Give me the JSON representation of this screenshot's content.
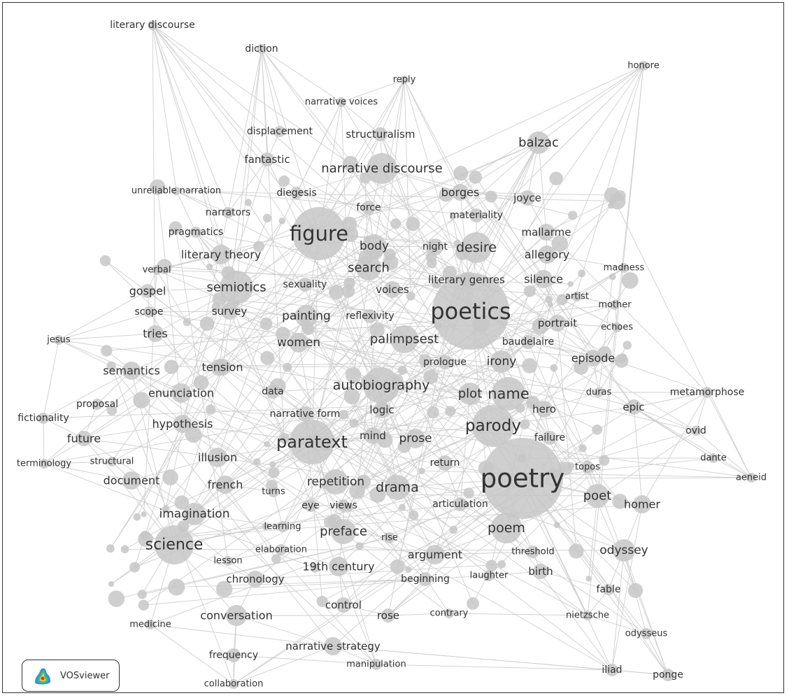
{
  "branding": {
    "name": "VOSviewer",
    "icon": "vosviewer-density-icon"
  },
  "colors": {
    "node": "#c7c7c7",
    "edge": "#cfcfcf",
    "label": "#333333",
    "frame": "#333333"
  },
  "terms": [
    {
      "id": "literary-discourse",
      "label": "literary discourse"
    },
    {
      "id": "diction",
      "label": "diction"
    },
    {
      "id": "reply",
      "label": "reply"
    },
    {
      "id": "honore",
      "label": "honore"
    },
    {
      "id": "narrative-voices",
      "label": "narrative voices"
    },
    {
      "id": "displacement",
      "label": "displacement"
    },
    {
      "id": "structuralism",
      "label": "structuralism"
    },
    {
      "id": "balzac",
      "label": "balzac"
    },
    {
      "id": "fantastic",
      "label": "fantastic"
    },
    {
      "id": "narrative-discourse",
      "label": "narrative discourse"
    },
    {
      "id": "unreliable-narration",
      "label": "unreliable narration"
    },
    {
      "id": "diegesis",
      "label": "diegesis"
    },
    {
      "id": "borges",
      "label": "borges"
    },
    {
      "id": "joyce",
      "label": "joyce"
    },
    {
      "id": "narrators",
      "label": "narrators"
    },
    {
      "id": "force",
      "label": "force"
    },
    {
      "id": "materiality",
      "label": "materiality"
    },
    {
      "id": "figure",
      "label": "figure"
    },
    {
      "id": "pragmatics",
      "label": "pragmatics"
    },
    {
      "id": "mallarme",
      "label": "mallarme"
    },
    {
      "id": "body",
      "label": "body"
    },
    {
      "id": "night",
      "label": "night"
    },
    {
      "id": "desire",
      "label": "desire"
    },
    {
      "id": "literary-theory",
      "label": "literary theory"
    },
    {
      "id": "allegory",
      "label": "allegory"
    },
    {
      "id": "verbal",
      "label": "verbal"
    },
    {
      "id": "search",
      "label": "search"
    },
    {
      "id": "madness",
      "label": "madness"
    },
    {
      "id": "gospel",
      "label": "gospel"
    },
    {
      "id": "semiotics",
      "label": "semiotics"
    },
    {
      "id": "sexuality",
      "label": "sexuality"
    },
    {
      "id": "literary-genres",
      "label": "literary genres"
    },
    {
      "id": "silence",
      "label": "silence"
    },
    {
      "id": "voices",
      "label": "voices"
    },
    {
      "id": "artist",
      "label": "artist"
    },
    {
      "id": "scope",
      "label": "scope"
    },
    {
      "id": "survey",
      "label": "survey"
    },
    {
      "id": "poetics",
      "label": "poetics"
    },
    {
      "id": "mother",
      "label": "mother"
    },
    {
      "id": "painting",
      "label": "painting"
    },
    {
      "id": "reflexivity",
      "label": "reflexivity"
    },
    {
      "id": "portrait",
      "label": "portrait"
    },
    {
      "id": "echoes",
      "label": "echoes"
    },
    {
      "id": "tries",
      "label": "tries"
    },
    {
      "id": "jesus",
      "label": "jesus"
    },
    {
      "id": "women",
      "label": "women"
    },
    {
      "id": "palimpsest",
      "label": "palimpsest"
    },
    {
      "id": "baudelaire",
      "label": "baudelaire"
    },
    {
      "id": "episode",
      "label": "episode"
    },
    {
      "id": "semantics",
      "label": "semantics"
    },
    {
      "id": "tension",
      "label": "tension"
    },
    {
      "id": "prologue",
      "label": "prologue"
    },
    {
      "id": "irony",
      "label": "irony"
    },
    {
      "id": "autobiography",
      "label": "autobiography"
    },
    {
      "id": "enunciation",
      "label": "enunciation"
    },
    {
      "id": "data",
      "label": "data"
    },
    {
      "id": "plot",
      "label": "plot"
    },
    {
      "id": "name",
      "label": "name"
    },
    {
      "id": "duras",
      "label": "duras"
    },
    {
      "id": "metamorphose",
      "label": "metamorphose"
    },
    {
      "id": "proposal",
      "label": "proposal"
    },
    {
      "id": "logic",
      "label": "logic"
    },
    {
      "id": "hero",
      "label": "hero"
    },
    {
      "id": "epic",
      "label": "epic"
    },
    {
      "id": "fictionality",
      "label": "fictionality"
    },
    {
      "id": "narrative-form",
      "label": "narrative form"
    },
    {
      "id": "hypothesis",
      "label": "hypothesis"
    },
    {
      "id": "parody",
      "label": "parody"
    },
    {
      "id": "ovid",
      "label": "ovid"
    },
    {
      "id": "future",
      "label": "future"
    },
    {
      "id": "mind",
      "label": "mind"
    },
    {
      "id": "prose",
      "label": "prose"
    },
    {
      "id": "failure",
      "label": "failure"
    },
    {
      "id": "paratext",
      "label": "paratext"
    },
    {
      "id": "dante",
      "label": "dante"
    },
    {
      "id": "terminology",
      "label": "terminology"
    },
    {
      "id": "structural",
      "label": "structural"
    },
    {
      "id": "illusion",
      "label": "illusion"
    },
    {
      "id": "return",
      "label": "return"
    },
    {
      "id": "topos",
      "label": "topos"
    },
    {
      "id": "aeneid",
      "label": "aeneid"
    },
    {
      "id": "poetry",
      "label": "poetry"
    },
    {
      "id": "document",
      "label": "document"
    },
    {
      "id": "repetition",
      "label": "repetition"
    },
    {
      "id": "french",
      "label": "french"
    },
    {
      "id": "drama",
      "label": "drama"
    },
    {
      "id": "turns",
      "label": "turns"
    },
    {
      "id": "poet",
      "label": "poet"
    },
    {
      "id": "homer",
      "label": "homer"
    },
    {
      "id": "eye",
      "label": "eye"
    },
    {
      "id": "views",
      "label": "views"
    },
    {
      "id": "articulation",
      "label": "articulation"
    },
    {
      "id": "imagination",
      "label": "imagination"
    },
    {
      "id": "learning",
      "label": "learning"
    },
    {
      "id": "poem",
      "label": "poem"
    },
    {
      "id": "preface",
      "label": "preface"
    },
    {
      "id": "rise",
      "label": "rise"
    },
    {
      "id": "science",
      "label": "science"
    },
    {
      "id": "elaboration",
      "label": "elaboration"
    },
    {
      "id": "odyssey",
      "label": "odyssey"
    },
    {
      "id": "argument",
      "label": "argument"
    },
    {
      "id": "threshold",
      "label": "threshold"
    },
    {
      "id": "lesson",
      "label": "lesson"
    },
    {
      "id": "19th-century",
      "label": "19th century"
    },
    {
      "id": "birth",
      "label": "birth"
    },
    {
      "id": "chronology",
      "label": "chronology"
    },
    {
      "id": "beginning",
      "label": "beginning"
    },
    {
      "id": "laughter",
      "label": "laughter"
    },
    {
      "id": "fable",
      "label": "fable"
    },
    {
      "id": "control",
      "label": "control"
    },
    {
      "id": "conversation",
      "label": "conversation"
    },
    {
      "id": "rose",
      "label": "rose"
    },
    {
      "id": "contrary",
      "label": "contrary"
    },
    {
      "id": "nietzsche",
      "label": "nietzsche"
    },
    {
      "id": "medicine",
      "label": "medicine"
    },
    {
      "id": "odysseus",
      "label": "odysseus"
    },
    {
      "id": "narrative-strategy",
      "label": "narrative strategy"
    },
    {
      "id": "frequency",
      "label": "frequency"
    },
    {
      "id": "manipulation",
      "label": "manipulation"
    },
    {
      "id": "iliad",
      "label": "iliad"
    },
    {
      "id": "ponge",
      "label": "ponge"
    },
    {
      "id": "collaboration",
      "label": "collaboration"
    }
  ]
}
